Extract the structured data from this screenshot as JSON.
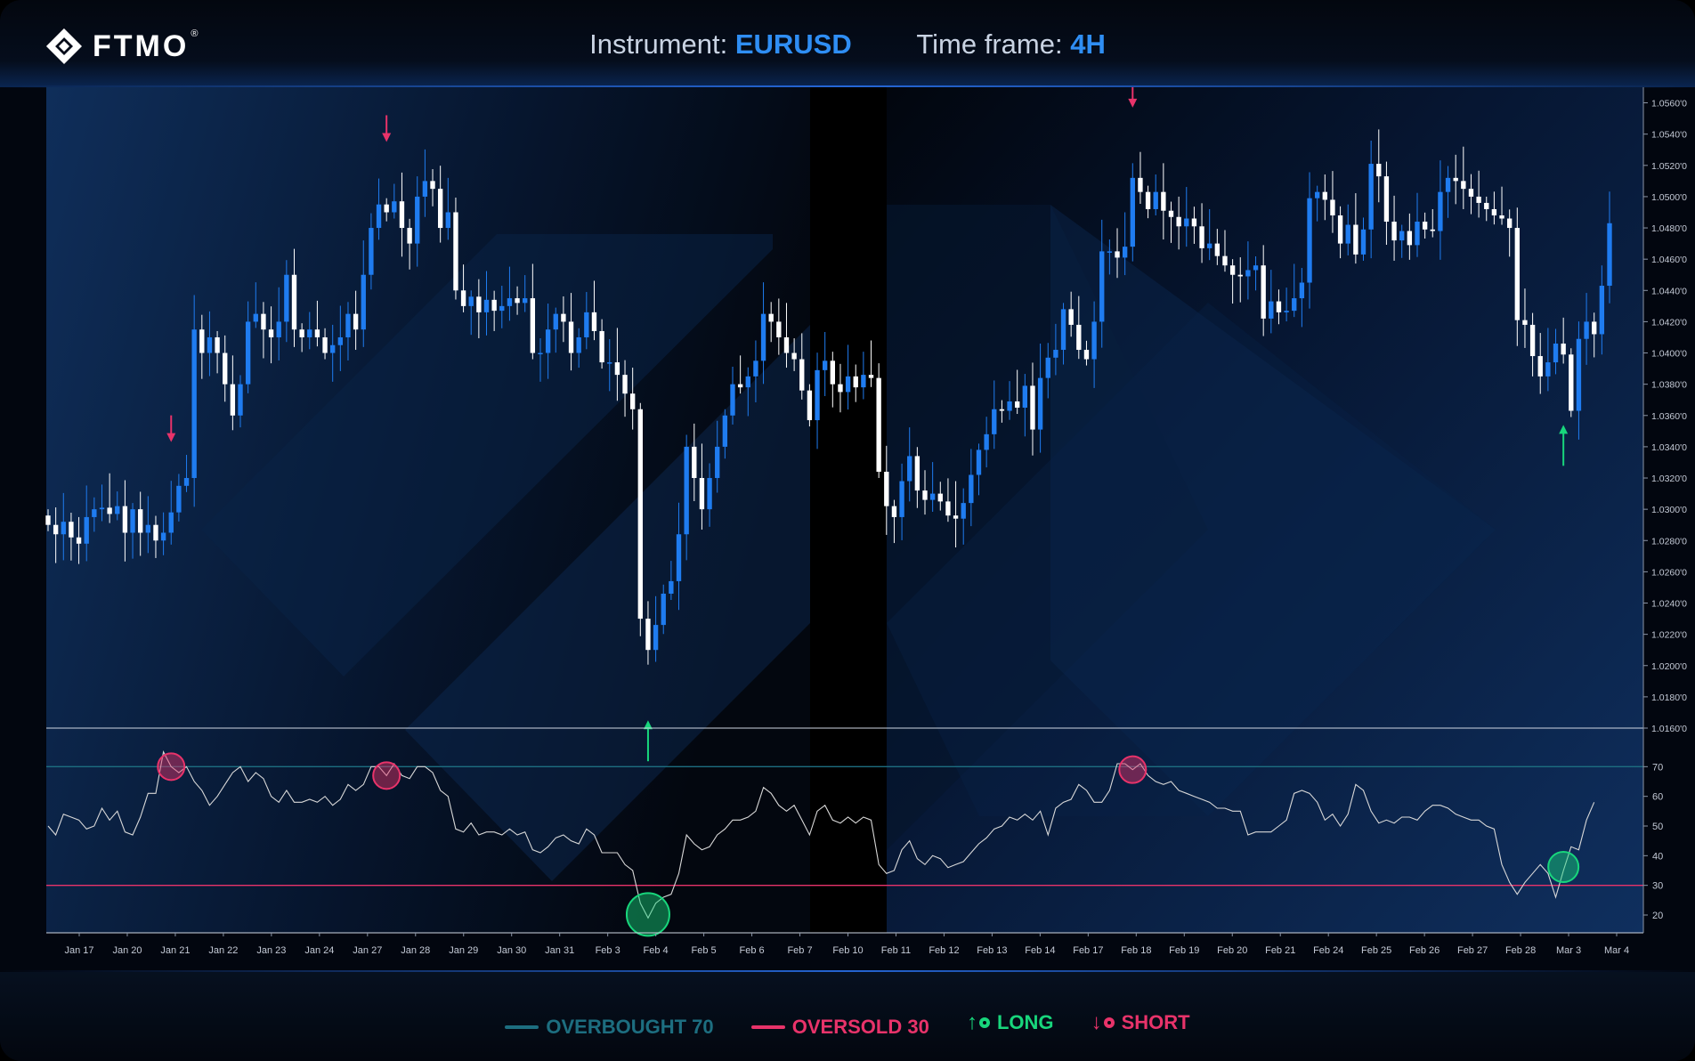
{
  "header": {
    "brand": "FTMO",
    "brand_mark": "®",
    "instrument_label": "Instrument:",
    "instrument_value": "EURUSD",
    "timeframe_label": "Time frame:",
    "timeframe_value": "4H"
  },
  "legend": {
    "overbought": "OVERBOUGHT 70",
    "oversold": "OVERSOLD 30",
    "long": "LONG",
    "short": "SHORT"
  },
  "colors": {
    "accent": "#2f8ef4",
    "bull": "#1f7cf0",
    "bear": "#ffffff",
    "overbought": "#1d6e80",
    "oversold": "#e8336a",
    "long": "#18d67c",
    "short": "#e8336a",
    "rsi_line": "#d8d8d8"
  },
  "icons": {
    "logo": "ftmo-diamond-icon",
    "long": "arrow-up-icon",
    "short": "arrow-down-icon"
  },
  "chart_data": [
    {
      "type": "candlestick",
      "ylim": [
        1.016,
        1.057
      ],
      "ytick_labels": [
        "1.0560'0",
        "1.0540'0",
        "1.0520'0",
        "1.0500'0",
        "1.0480'0",
        "1.0460'0",
        "1.0440'0",
        "1.0420'0",
        "1.0400'0",
        "1.0380'0",
        "1.0360'0",
        "1.0340'0",
        "1.0320'0",
        "1.0300'0",
        "1.0280'0",
        "1.0260'0",
        "1.0240'0",
        "1.0220'0",
        "1.0200'0",
        "1.0180'0",
        "1.0160'0"
      ],
      "ytick_values": [
        1.056,
        1.054,
        1.052,
        1.05,
        1.048,
        1.046,
        1.044,
        1.042,
        1.04,
        1.038,
        1.036,
        1.034,
        1.032,
        1.03,
        1.028,
        1.026,
        1.024,
        1.022,
        1.02,
        1.018,
        1.016
      ],
      "date_labels": [
        "Jan 17",
        "Jan 20",
        "Jan 21",
        "Jan 22",
        "Jan 23",
        "Jan 24",
        "Jan 27",
        "Jan 28",
        "Jan 29",
        "Jan 30",
        "Jan 31",
        "Feb 3",
        "Feb 4",
        "Feb 5",
        "Feb 6",
        "Feb 7",
        "Feb 10",
        "Feb 11",
        "Feb 12",
        "Feb 13",
        "Feb 14",
        "Feb 17",
        "Feb 18",
        "Feb 19",
        "Feb 20",
        "Feb 21",
        "Feb 24",
        "Feb 25",
        "Feb 26",
        "Feb 27",
        "Feb 28",
        "Mar 3",
        "Mar 4"
      ],
      "closes": [
        1.029,
        1.0284,
        1.0292,
        1.0282,
        1.0278,
        1.0295,
        1.03,
        1.0301,
        1.0297,
        1.0302,
        1.0285,
        1.03,
        1.0285,
        1.029,
        1.028,
        1.0285,
        1.0298,
        1.0315,
        1.032,
        1.0415,
        1.04,
        1.041,
        1.04,
        1.038,
        1.036,
        1.038,
        1.042,
        1.0425,
        1.0415,
        1.041,
        1.042,
        1.045,
        1.0415,
        1.041,
        1.0415,
        1.041,
        1.04,
        1.0405,
        1.041,
        1.0425,
        1.0415,
        1.045,
        1.048,
        1.0495,
        1.049,
        1.0497,
        1.048,
        1.047,
        1.05,
        1.051,
        1.0505,
        1.048,
        1.049,
        1.044,
        1.043,
        1.0436,
        1.0426,
        1.0434,
        1.0427,
        1.043,
        1.0435,
        1.0432,
        1.0435,
        1.04,
        1.04,
        1.0415,
        1.0425,
        1.042,
        1.04,
        1.041,
        1.0426,
        1.0414,
        1.0394,
        1.0394,
        1.0386,
        1.0374,
        1.0364,
        1.023,
        1.021,
        1.0226,
        1.0246,
        1.0254,
        1.0284,
        1.034,
        1.032,
        1.03,
        1.032,
        1.034,
        1.036,
        1.038,
        1.0378,
        1.0385,
        1.0395,
        1.0425,
        1.042,
        1.041,
        1.04,
        1.0396,
        1.0376,
        1.0357,
        1.0389,
        1.0395,
        1.038,
        1.0375,
        1.0385,
        1.0378,
        1.0386,
        1.0384,
        1.0324,
        1.0302,
        1.0295,
        1.0318,
        1.0334,
        1.0312,
        1.0306,
        1.031,
        1.0305,
        1.0296,
        1.0294,
        1.0304,
        1.0322,
        1.0338,
        1.0348,
        1.0364,
        1.0363,
        1.0369,
        1.0365,
        1.0379,
        1.0351,
        1.0384,
        1.0397,
        1.0402,
        1.0428,
        1.0418,
        1.0402,
        1.0396,
        1.042,
        1.0465,
        1.0465,
        1.0461,
        1.0468,
        1.0512,
        1.0503,
        1.0492,
        1.0503,
        1.0491,
        1.0487,
        1.0481,
        1.0486,
        1.0481,
        1.0467,
        1.047,
        1.0462,
        1.0456,
        1.045,
        1.0449,
        1.0453,
        1.0456,
        1.0422,
        1.0433,
        1.0426,
        1.0427,
        1.0435,
        1.0445,
        1.0499,
        1.0503,
        1.0498,
        1.0488,
        1.047,
        1.0482,
        1.0463,
        1.0479,
        1.0521,
        1.0513,
        1.0484,
        1.0472,
        1.0478,
        1.0469,
        1.0484,
        1.0479,
        1.0478,
        1.0503,
        1.0512,
        1.051,
        1.0505,
        1.05,
        1.0496,
        1.0492,
        1.0488,
        1.0486,
        1.048,
        1.0421,
        1.0418,
        1.0398,
        1.0385,
        1.0394,
        1.0406,
        1.0399,
        1.0363,
        1.0409,
        1.042,
        1.0412,
        1.0443,
        1.0483
      ]
    },
    {
      "type": "line",
      "name": "RSI",
      "ylim": [
        14,
        83
      ],
      "ytick_labels": [
        "70",
        "60",
        "50",
        "40",
        "30",
        "20"
      ],
      "ytick_values": [
        70,
        60,
        50,
        40,
        30,
        20
      ],
      "overbought": 70,
      "oversold": 30,
      "values": [
        50,
        47,
        54,
        53,
        52,
        49,
        50,
        56,
        52,
        55,
        48,
        47,
        53,
        61,
        61,
        75,
        70,
        68,
        70,
        65,
        62,
        57,
        60,
        64,
        68,
        70,
        65,
        68,
        66,
        60,
        58,
        62,
        58,
        58,
        59,
        58,
        60,
        57,
        59,
        64,
        62,
        64,
        70,
        70,
        67,
        71,
        67,
        66,
        70,
        70,
        68,
        62,
        60,
        49,
        48,
        51,
        47,
        48,
        48,
        47,
        49,
        47,
        48,
        42,
        41,
        43,
        46,
        47,
        45,
        44,
        49,
        47,
        41,
        41,
        41,
        37,
        35,
        24,
        19,
        24,
        26,
        27,
        34,
        47,
        44,
        42,
        43,
        47,
        49,
        52,
        52,
        53,
        55,
        63,
        61,
        57,
        55,
        57,
        52,
        47,
        55,
        57,
        52,
        51,
        53,
        51,
        53,
        52,
        37,
        34,
        35,
        42,
        45,
        39,
        37,
        40,
        39,
        36,
        37,
        38,
        41,
        44,
        46,
        49,
        50,
        53,
        52,
        54,
        52,
        55,
        47,
        56,
        58,
        59,
        64,
        62,
        58,
        58,
        62,
        71,
        71,
        69,
        71,
        67,
        65,
        64,
        65,
        62,
        61,
        60,
        59,
        58,
        56,
        56,
        55,
        55,
        47,
        48,
        48,
        48,
        50,
        52,
        61,
        62,
        61,
        58,
        52,
        54,
        50,
        54,
        64,
        62,
        55,
        51,
        52,
        51,
        53,
        53,
        52,
        55,
        57,
        57,
        56,
        54,
        53,
        52,
        52,
        50,
        49,
        37,
        31,
        27,
        31,
        34,
        37,
        34,
        26,
        35,
        43,
        42,
        52,
        58
      ]
    }
  ],
  "signals": [
    {
      "type": "short",
      "index": 16
    },
    {
      "type": "short",
      "index": 44
    },
    {
      "type": "long",
      "index": 78
    },
    {
      "type": "short",
      "index": 141
    },
    {
      "type": "long",
      "index": 197
    }
  ]
}
